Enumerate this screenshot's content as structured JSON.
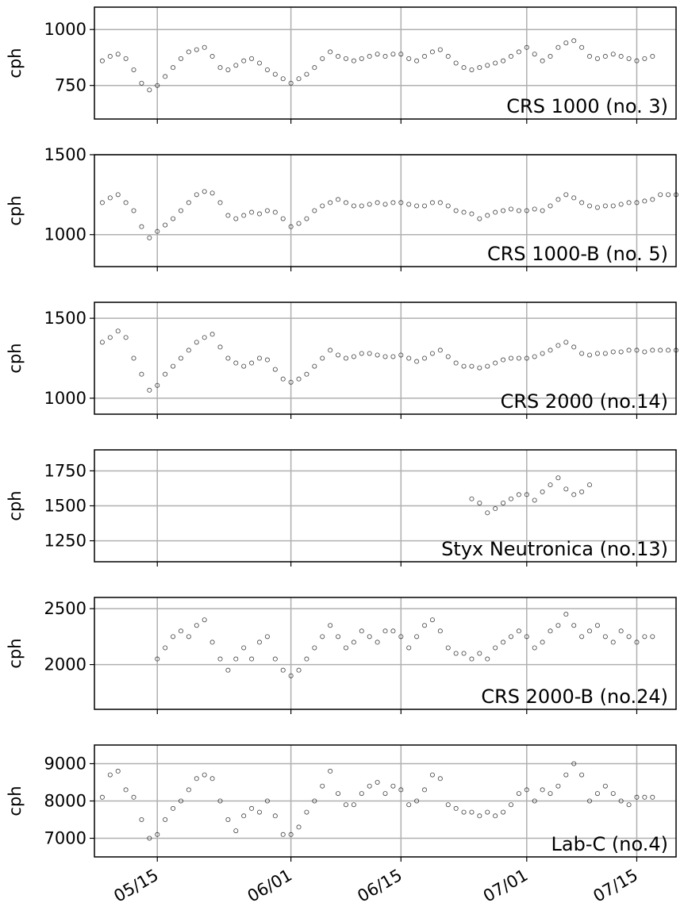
{
  "chart_data": [
    {
      "type": "scatter",
      "annotation": "CRS 1000 (no. 3)",
      "y_label": "cph",
      "color": "#000000",
      "grid": true,
      "xlim": [
        "05/07",
        "07/20"
      ],
      "xticks": [
        "05/15",
        "06/01",
        "06/15",
        "07/01",
        "07/15"
      ],
      "ylim": [
        600,
        1100
      ],
      "yticks": [
        750,
        1000
      ],
      "x": [
        "05/08",
        "05/09",
        "05/10",
        "05/11",
        "05/12",
        "05/13",
        "05/14",
        "05/15",
        "05/16",
        "05/17",
        "05/18",
        "05/19",
        "05/20",
        "05/21",
        "05/22",
        "05/23",
        "05/24",
        "05/25",
        "05/26",
        "05/27",
        "05/28",
        "05/29",
        "05/30",
        "05/31",
        "06/01",
        "06/02",
        "06/03",
        "06/04",
        "06/05",
        "06/06",
        "06/07",
        "06/08",
        "06/09",
        "06/10",
        "06/11",
        "06/12",
        "06/13",
        "06/14",
        "06/15",
        "06/16",
        "06/17",
        "06/18",
        "06/19",
        "06/20",
        "06/21",
        "06/22",
        "06/23",
        "06/24",
        "06/25",
        "06/26",
        "06/27",
        "06/28",
        "06/29",
        "06/30",
        "07/01",
        "07/02",
        "07/03",
        "07/04",
        "07/05",
        "07/06",
        "07/07",
        "07/08",
        "07/09",
        "07/10",
        "07/11",
        "07/12",
        "07/13",
        "07/14",
        "07/15",
        "07/16",
        "07/17",
        "07/18",
        "07/19",
        "07/20"
      ],
      "values": [
        860,
        880,
        890,
        870,
        820,
        760,
        730,
        750,
        790,
        830,
        870,
        900,
        910,
        920,
        880,
        830,
        820,
        840,
        860,
        870,
        850,
        820,
        800,
        780,
        760,
        780,
        800,
        830,
        870,
        900,
        880,
        870,
        860,
        870,
        880,
        890,
        880,
        890,
        890,
        870,
        860,
        880,
        900,
        910,
        880,
        850,
        830,
        820,
        830,
        840,
        850,
        860,
        880,
        900,
        920,
        890,
        860,
        880,
        920,
        940,
        950,
        920,
        880,
        870,
        880,
        890,
        880,
        870,
        860,
        870,
        880,
        null,
        null,
        null
      ]
    },
    {
      "type": "scatter",
      "annotation": "CRS 1000-B (no. 5)",
      "y_label": "cph",
      "color": "#000000",
      "grid": true,
      "xlim": [
        "05/07",
        "07/20"
      ],
      "xticks": [
        "05/15",
        "06/01",
        "06/15",
        "07/01",
        "07/15"
      ],
      "ylim": [
        800,
        1500
      ],
      "yticks": [
        1000,
        1500
      ],
      "x": [
        "05/08",
        "05/09",
        "05/10",
        "05/11",
        "05/12",
        "05/13",
        "05/14",
        "05/15",
        "05/16",
        "05/17",
        "05/18",
        "05/19",
        "05/20",
        "05/21",
        "05/22",
        "05/23",
        "05/24",
        "05/25",
        "05/26",
        "05/27",
        "05/28",
        "05/29",
        "05/30",
        "05/31",
        "06/01",
        "06/02",
        "06/03",
        "06/04",
        "06/05",
        "06/06",
        "06/07",
        "06/08",
        "06/09",
        "06/10",
        "06/11",
        "06/12",
        "06/13",
        "06/14",
        "06/15",
        "06/16",
        "06/17",
        "06/18",
        "06/19",
        "06/20",
        "06/21",
        "06/22",
        "06/23",
        "06/24",
        "06/25",
        "06/26",
        "06/27",
        "06/28",
        "06/29",
        "06/30",
        "07/01",
        "07/02",
        "07/03",
        "07/04",
        "07/05",
        "07/06",
        "07/07",
        "07/08",
        "07/09",
        "07/10",
        "07/11",
        "07/12",
        "07/13",
        "07/14",
        "07/15",
        "07/16",
        "07/17",
        "07/18",
        "07/19",
        "07/20"
      ],
      "values": [
        1200,
        1230,
        1250,
        1200,
        1150,
        1050,
        980,
        1020,
        1060,
        1100,
        1150,
        1200,
        1250,
        1270,
        1260,
        1200,
        1120,
        1100,
        1120,
        1140,
        1130,
        1150,
        1140,
        1100,
        1050,
        1070,
        1100,
        1150,
        1180,
        1200,
        1220,
        1200,
        1180,
        1180,
        1190,
        1200,
        1190,
        1200,
        1200,
        1190,
        1180,
        1180,
        1200,
        1200,
        1180,
        1150,
        1140,
        1130,
        1100,
        1120,
        1140,
        1150,
        1160,
        1150,
        1150,
        1160,
        1150,
        1180,
        1220,
        1250,
        1230,
        1200,
        1180,
        1170,
        1180,
        1180,
        1190,
        1200,
        1200,
        1210,
        1220,
        1250,
        1250,
        1250
      ]
    },
    {
      "type": "scatter",
      "annotation": "CRS 2000 (no.14)",
      "y_label": "cph",
      "color": "#000000",
      "grid": true,
      "xlim": [
        "05/07",
        "07/20"
      ],
      "xticks": [
        "05/15",
        "06/01",
        "06/15",
        "07/01",
        "07/15"
      ],
      "ylim": [
        900,
        1600
      ],
      "yticks": [
        1000,
        1500
      ],
      "x": [
        "05/08",
        "05/09",
        "05/10",
        "05/11",
        "05/12",
        "05/13",
        "05/14",
        "05/15",
        "05/16",
        "05/17",
        "05/18",
        "05/19",
        "05/20",
        "05/21",
        "05/22",
        "05/23",
        "05/24",
        "05/25",
        "05/26",
        "05/27",
        "05/28",
        "05/29",
        "05/30",
        "05/31",
        "06/01",
        "06/02",
        "06/03",
        "06/04",
        "06/05",
        "06/06",
        "06/07",
        "06/08",
        "06/09",
        "06/10",
        "06/11",
        "06/12",
        "06/13",
        "06/14",
        "06/15",
        "06/16",
        "06/17",
        "06/18",
        "06/19",
        "06/20",
        "06/21",
        "06/22",
        "06/23",
        "06/24",
        "06/25",
        "06/26",
        "06/27",
        "06/28",
        "06/29",
        "06/30",
        "07/01",
        "07/02",
        "07/03",
        "07/04",
        "07/05",
        "07/06",
        "07/07",
        "07/08",
        "07/09",
        "07/10",
        "07/11",
        "07/12",
        "07/13",
        "07/14",
        "07/15",
        "07/16",
        "07/17",
        "07/18",
        "07/19",
        "07/20"
      ],
      "values": [
        1350,
        1380,
        1420,
        1380,
        1250,
        1150,
        1050,
        1080,
        1150,
        1200,
        1250,
        1300,
        1350,
        1380,
        1400,
        1320,
        1250,
        1220,
        1200,
        1220,
        1250,
        1240,
        1180,
        1120,
        1100,
        1120,
        1150,
        1200,
        1250,
        1300,
        1270,
        1250,
        1260,
        1280,
        1280,
        1270,
        1260,
        1260,
        1270,
        1250,
        1230,
        1250,
        1280,
        1300,
        1260,
        1220,
        1200,
        1200,
        1190,
        1200,
        1220,
        1240,
        1250,
        1250,
        1250,
        1260,
        1280,
        1300,
        1330,
        1350,
        1320,
        1280,
        1270,
        1280,
        1280,
        1290,
        1290,
        1300,
        1300,
        1290,
        1300,
        1300,
        1300,
        1300
      ]
    },
    {
      "type": "scatter",
      "annotation": "Styx Neutronica (no.13)",
      "y_label": "cph",
      "color": "#000000",
      "grid": true,
      "xlim": [
        "05/07",
        "07/20"
      ],
      "xticks": [
        "05/15",
        "06/01",
        "06/15",
        "07/01",
        "07/15"
      ],
      "ylim": [
        1100,
        1900
      ],
      "yticks": [
        1250,
        1500,
        1750
      ],
      "x": [
        "05/08",
        "05/09",
        "05/10",
        "05/11",
        "05/12",
        "05/13",
        "05/14",
        "05/15",
        "05/16",
        "05/17",
        "05/18",
        "05/19",
        "05/20",
        "05/21",
        "05/22",
        "05/23",
        "05/24",
        "05/25",
        "05/26",
        "05/27",
        "05/28",
        "05/29",
        "05/30",
        "05/31",
        "06/01",
        "06/02",
        "06/03",
        "06/04",
        "06/05",
        "06/06",
        "06/07",
        "06/08",
        "06/09",
        "06/10",
        "06/11",
        "06/12",
        "06/13",
        "06/14",
        "06/15",
        "06/16",
        "06/17",
        "06/18",
        "06/19",
        "06/20",
        "06/21",
        "06/22",
        "06/23",
        "06/24",
        "06/25",
        "06/26",
        "06/27",
        "06/28",
        "06/29",
        "06/30",
        "07/01",
        "07/02",
        "07/03",
        "07/04",
        "07/05",
        "07/06",
        "07/07",
        "07/08",
        "07/09",
        "07/10",
        "07/11",
        "07/12",
        "07/13",
        "07/14",
        "07/15",
        "07/16",
        "07/17",
        "07/18",
        "07/19",
        "07/20"
      ],
      "values": [
        null,
        null,
        null,
        null,
        null,
        null,
        null,
        null,
        null,
        null,
        null,
        null,
        null,
        null,
        null,
        null,
        null,
        null,
        null,
        null,
        null,
        null,
        null,
        null,
        null,
        null,
        null,
        null,
        null,
        null,
        null,
        null,
        null,
        null,
        null,
        null,
        null,
        null,
        null,
        null,
        null,
        null,
        null,
        null,
        null,
        null,
        null,
        1550,
        1520,
        1450,
        1480,
        1520,
        1550,
        1580,
        1580,
        1540,
        1600,
        1650,
        1700,
        1620,
        1580,
        1600,
        1650,
        null,
        null,
        null,
        null,
        null,
        null,
        null,
        null,
        null,
        null,
        null
      ]
    },
    {
      "type": "scatter",
      "annotation": "CRS 2000-B (no.24)",
      "y_label": "cph",
      "color": "#000000",
      "grid": true,
      "xlim": [
        "05/07",
        "07/20"
      ],
      "xticks": [
        "05/15",
        "06/01",
        "06/15",
        "07/01",
        "07/15"
      ],
      "ylim": [
        1600,
        2600
      ],
      "yticks": [
        2000,
        2500
      ],
      "x": [
        "05/08",
        "05/09",
        "05/10",
        "05/11",
        "05/12",
        "05/13",
        "05/14",
        "05/15",
        "05/16",
        "05/17",
        "05/18",
        "05/19",
        "05/20",
        "05/21",
        "05/22",
        "05/23",
        "05/24",
        "05/25",
        "05/26",
        "05/27",
        "05/28",
        "05/29",
        "05/30",
        "05/31",
        "06/01",
        "06/02",
        "06/03",
        "06/04",
        "06/05",
        "06/06",
        "06/07",
        "06/08",
        "06/09",
        "06/10",
        "06/11",
        "06/12",
        "06/13",
        "06/14",
        "06/15",
        "06/16",
        "06/17",
        "06/18",
        "06/19",
        "06/20",
        "06/21",
        "06/22",
        "06/23",
        "06/24",
        "06/25",
        "06/26",
        "06/27",
        "06/28",
        "06/29",
        "06/30",
        "07/01",
        "07/02",
        "07/03",
        "07/04",
        "07/05",
        "07/06",
        "07/07",
        "07/08",
        "07/09",
        "07/10",
        "07/11",
        "07/12",
        "07/13",
        "07/14",
        "07/15",
        "07/16",
        "07/17",
        "07/18",
        "07/19",
        "07/20"
      ],
      "values": [
        null,
        null,
        null,
        null,
        null,
        null,
        null,
        2050,
        2150,
        2250,
        2300,
        2250,
        2350,
        2400,
        2200,
        2050,
        1950,
        2050,
        2150,
        2050,
        2200,
        2250,
        2050,
        1950,
        1900,
        1950,
        2050,
        2150,
        2250,
        2350,
        2250,
        2150,
        2200,
        2300,
        2250,
        2200,
        2300,
        2300,
        2250,
        2150,
        2250,
        2350,
        2400,
        2300,
        2150,
        2100,
        2100,
        2050,
        2100,
        2050,
        2150,
        2200,
        2250,
        2300,
        2250,
        2150,
        2200,
        2300,
        2350,
        2450,
        2350,
        2250,
        2300,
        2350,
        2250,
        2200,
        2300,
        2250,
        2200,
        2250,
        2250,
        null,
        null,
        null
      ]
    },
    {
      "type": "scatter",
      "annotation": "Lab-C (no.4)",
      "y_label": "cph",
      "color": "#000000",
      "grid": true,
      "xlim": [
        "05/07",
        "07/20"
      ],
      "xticks": [
        "05/15",
        "06/01",
        "06/15",
        "07/01",
        "07/15"
      ],
      "ylim": [
        6500,
        9500
      ],
      "yticks": [
        7000,
        8000,
        9000
      ],
      "x": [
        "05/08",
        "05/09",
        "05/10",
        "05/11",
        "05/12",
        "05/13",
        "05/14",
        "05/15",
        "05/16",
        "05/17",
        "05/18",
        "05/19",
        "05/20",
        "05/21",
        "05/22",
        "05/23",
        "05/24",
        "05/25",
        "05/26",
        "05/27",
        "05/28",
        "05/29",
        "05/30",
        "05/31",
        "06/01",
        "06/02",
        "06/03",
        "06/04",
        "06/05",
        "06/06",
        "06/07",
        "06/08",
        "06/09",
        "06/10",
        "06/11",
        "06/12",
        "06/13",
        "06/14",
        "06/15",
        "06/16",
        "06/17",
        "06/18",
        "06/19",
        "06/20",
        "06/21",
        "06/22",
        "06/23",
        "06/24",
        "06/25",
        "06/26",
        "06/27",
        "06/28",
        "06/29",
        "06/30",
        "07/01",
        "07/02",
        "07/03",
        "07/04",
        "07/05",
        "07/06",
        "07/07",
        "07/08",
        "07/09",
        "07/10",
        "07/11",
        "07/12",
        "07/13",
        "07/14",
        "07/15",
        "07/16",
        "07/17",
        "07/18",
        "07/19",
        "07/20"
      ],
      "values": [
        8100,
        8700,
        8800,
        8300,
        8100,
        7500,
        7000,
        7100,
        7500,
        7800,
        8000,
        8300,
        8600,
        8700,
        8600,
        8000,
        7500,
        7200,
        7600,
        7800,
        7700,
        8000,
        7600,
        7100,
        7100,
        7300,
        7700,
        8000,
        8400,
        8800,
        8200,
        7900,
        7900,
        8200,
        8400,
        8500,
        8200,
        8400,
        8300,
        7900,
        8000,
        8300,
        8700,
        8600,
        7900,
        7800,
        7700,
        7700,
        7600,
        7700,
        7600,
        7700,
        7900,
        8200,
        8300,
        8000,
        8300,
        8200,
        8400,
        8700,
        9000,
        8700,
        8000,
        8200,
        8400,
        8200,
        8000,
        7900,
        8100,
        8100,
        8100,
        null,
        null,
        null
      ]
    }
  ]
}
